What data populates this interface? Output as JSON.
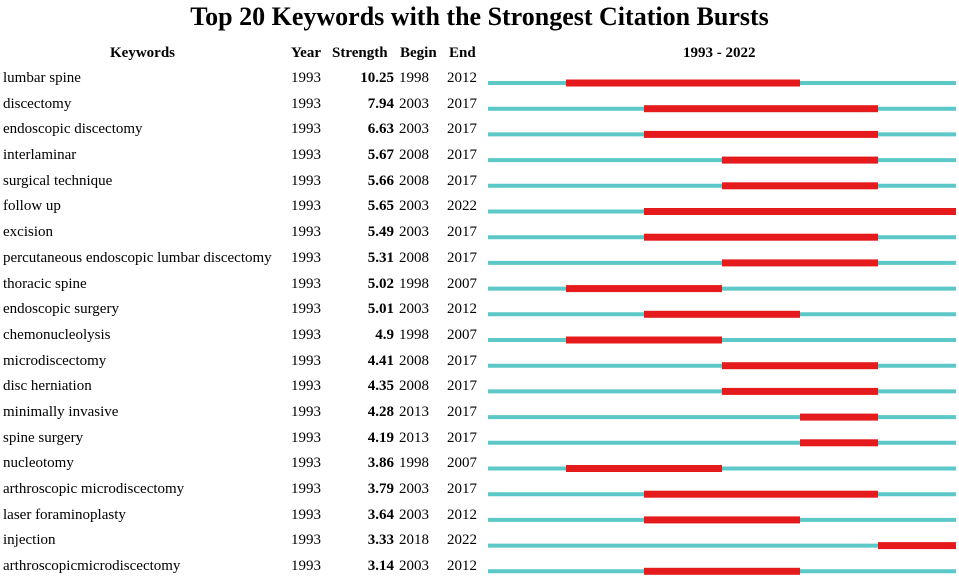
{
  "chart_data": {
    "type": "table",
    "title": "Top 20 Keywords with the Strongest Citation Bursts",
    "headers": {
      "keywords": "Keywords",
      "year": "Year",
      "strength": "Strength",
      "begin": "Begin",
      "end": "End",
      "range": "1993 - 2022"
    },
    "timeline": {
      "start": 1993,
      "end": 2022
    },
    "colors": {
      "baseline": "#5cc8c8",
      "burst": "#e41a1c"
    },
    "rows": [
      {
        "keyword": "lumbar spine",
        "year": "1993",
        "strength": "10.25",
        "begin": "1998",
        "end": "2012"
      },
      {
        "keyword": "discectomy",
        "year": "1993",
        "strength": "7.94",
        "begin": "2003",
        "end": "2017"
      },
      {
        "keyword": "endoscopic discectomy",
        "year": "1993",
        "strength": "6.63",
        "begin": "2003",
        "end": "2017"
      },
      {
        "keyword": "interlaminar",
        "year": "1993",
        "strength": "5.67",
        "begin": "2008",
        "end": "2017"
      },
      {
        "keyword": "surgical technique",
        "year": "1993",
        "strength": "5.66",
        "begin": "2008",
        "end": "2017"
      },
      {
        "keyword": "follow up",
        "year": "1993",
        "strength": "5.65",
        "begin": "2003",
        "end": "2022"
      },
      {
        "keyword": "excision",
        "year": "1993",
        "strength": "5.49",
        "begin": "2003",
        "end": "2017"
      },
      {
        "keyword": "percutaneous endoscopic lumbar discectomy",
        "year": "1993",
        "strength": "5.31",
        "begin": "2008",
        "end": "2017"
      },
      {
        "keyword": "thoracic spine",
        "year": "1993",
        "strength": "5.02",
        "begin": "1998",
        "end": "2007"
      },
      {
        "keyword": "endoscopic surgery",
        "year": "1993",
        "strength": "5.01",
        "begin": "2003",
        "end": "2012"
      },
      {
        "keyword": "chemonucleolysis",
        "year": "1993",
        "strength": "4.9",
        "begin": "1998",
        "end": "2007"
      },
      {
        "keyword": "microdiscectomy",
        "year": "1993",
        "strength": "4.41",
        "begin": "2008",
        "end": "2017"
      },
      {
        "keyword": "disc herniation",
        "year": "1993",
        "strength": "4.35",
        "begin": "2008",
        "end": "2017"
      },
      {
        "keyword": "minimally invasive",
        "year": "1993",
        "strength": "4.28",
        "begin": "2013",
        "end": "2017"
      },
      {
        "keyword": "spine surgery",
        "year": "1993",
        "strength": "4.19",
        "begin": "2013",
        "end": "2017"
      },
      {
        "keyword": "nucleotomy",
        "year": "1993",
        "strength": "3.86",
        "begin": "1998",
        "end": "2007"
      },
      {
        "keyword": "arthroscopic microdiscectomy",
        "year": "1993",
        "strength": "3.79",
        "begin": "2003",
        "end": "2017"
      },
      {
        "keyword": "laser foraminoplasty",
        "year": "1993",
        "strength": "3.64",
        "begin": "2003",
        "end": "2012"
      },
      {
        "keyword": "injection",
        "year": "1993",
        "strength": "3.33",
        "begin": "2018",
        "end": "2022"
      },
      {
        "keyword": "arthroscopicmicrodiscectomy",
        "year": "1993",
        "strength": "3.14",
        "begin": "2003",
        "end": "2012"
      }
    ]
  }
}
